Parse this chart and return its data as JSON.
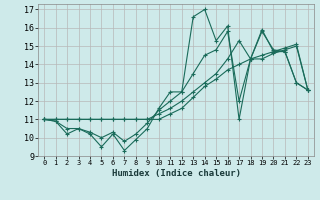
{
  "title": "",
  "xlabel": "Humidex (Indice chaleur)",
  "bg_color": "#ceeaea",
  "grid_color": "#b8b8b8",
  "line_color": "#1a6b5a",
  "xlim": [
    -0.5,
    23.5
  ],
  "ylim": [
    9,
    17.3
  ],
  "yticks": [
    9,
    10,
    11,
    12,
    13,
    14,
    15,
    16,
    17
  ],
  "xticks": [
    0,
    1,
    2,
    3,
    4,
    5,
    6,
    7,
    8,
    9,
    10,
    11,
    12,
    13,
    14,
    15,
    16,
    17,
    18,
    19,
    20,
    21,
    22,
    23
  ],
  "series": [
    [
      11.0,
      10.9,
      10.2,
      10.5,
      10.2,
      9.5,
      10.2,
      9.3,
      9.9,
      10.5,
      11.6,
      12.5,
      12.5,
      16.6,
      17.0,
      15.3,
      16.1,
      11.0,
      14.3,
      15.9,
      14.7,
      14.7,
      13.0,
      12.6
    ],
    [
      11.0,
      11.0,
      11.0,
      11.0,
      11.0,
      11.0,
      11.0,
      11.0,
      11.0,
      11.0,
      11.3,
      11.6,
      12.0,
      12.5,
      13.0,
      13.5,
      14.3,
      15.3,
      14.3,
      14.3,
      14.6,
      14.8,
      15.0,
      12.6
    ],
    [
      11.0,
      11.0,
      11.0,
      11.0,
      11.0,
      11.0,
      11.0,
      11.0,
      11.0,
      11.0,
      11.0,
      11.3,
      11.6,
      12.2,
      12.8,
      13.2,
      13.7,
      14.0,
      14.3,
      14.5,
      14.7,
      14.9,
      15.1,
      12.6
    ],
    [
      11.0,
      10.9,
      10.5,
      10.5,
      10.3,
      10.0,
      10.3,
      9.8,
      10.2,
      10.8,
      11.5,
      12.0,
      12.5,
      13.5,
      14.5,
      14.8,
      15.8,
      12.0,
      14.3,
      15.8,
      14.8,
      14.7,
      13.0,
      12.6
    ]
  ]
}
